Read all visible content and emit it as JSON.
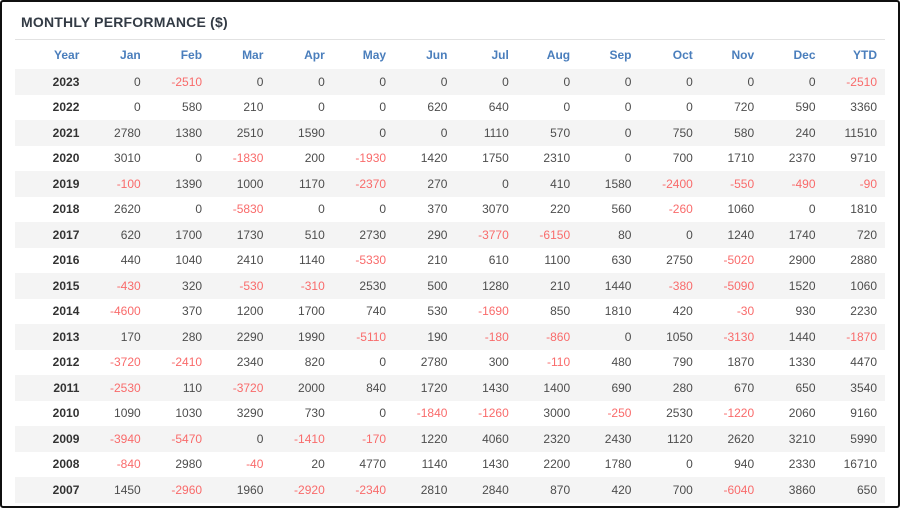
{
  "title": "MONTHLY PERFORMANCE ($)",
  "colors": {
    "header_text": "#4a7ebc",
    "negative_value": "#f96b6b",
    "value_text": "#4d4d4d",
    "year_text": "#333333",
    "stripe_row": "#f4f4f4",
    "title_text": "#333b45",
    "frame_border": "#101010"
  },
  "chart_data": {
    "type": "table",
    "title": "MONTHLY PERFORMANCE ($)",
    "columns": [
      "Year",
      "Jan",
      "Feb",
      "Mar",
      "Apr",
      "May",
      "Jun",
      "Jul",
      "Aug",
      "Sep",
      "Oct",
      "Nov",
      "Dec",
      "YTD"
    ],
    "rows": [
      [
        "2023",
        0,
        -2510,
        0,
        0,
        0,
        0,
        0,
        0,
        0,
        0,
        0,
        0,
        -2510
      ],
      [
        "2022",
        0,
        580,
        210,
        0,
        0,
        620,
        640,
        0,
        0,
        0,
        720,
        590,
        3360
      ],
      [
        "2021",
        2780,
        1380,
        2510,
        1590,
        0,
        0,
        1110,
        570,
        0,
        750,
        580,
        240,
        11510
      ],
      [
        "2020",
        3010,
        0,
        -1830,
        200,
        -1930,
        1420,
        1750,
        2310,
        0,
        700,
        1710,
        2370,
        9710
      ],
      [
        "2019",
        -100,
        1390,
        1000,
        1170,
        -2370,
        270,
        0,
        410,
        1580,
        -2400,
        -550,
        -490,
        -90
      ],
      [
        "2018",
        2620,
        0,
        -5830,
        0,
        0,
        370,
        3070,
        220,
        560,
        -260,
        1060,
        0,
        1810
      ],
      [
        "2017",
        620,
        1700,
        1730,
        510,
        2730,
        290,
        -3770,
        -6150,
        80,
        0,
        1240,
        1740,
        720
      ],
      [
        "2016",
        440,
        1040,
        2410,
        1140,
        -5330,
        210,
        610,
        1100,
        630,
        2750,
        -5020,
        2900,
        2880
      ],
      [
        "2015",
        -430,
        320,
        -530,
        -310,
        2530,
        500,
        1280,
        210,
        1440,
        -380,
        -5090,
        1520,
        1060
      ],
      [
        "2014",
        -4600,
        370,
        1200,
        1700,
        740,
        530,
        -1690,
        850,
        1810,
        420,
        -30,
        930,
        2230
      ],
      [
        "2013",
        170,
        280,
        2290,
        1990,
        -5110,
        190,
        -180,
        -860,
        0,
        1050,
        -3130,
        1440,
        -1870
      ],
      [
        "2012",
        -3720,
        -2410,
        2340,
        820,
        0,
        2780,
        300,
        -110,
        480,
        790,
        1870,
        1330,
        4470
      ],
      [
        "2011",
        -2530,
        110,
        -3720,
        2000,
        840,
        1720,
        1430,
        1400,
        690,
        280,
        670,
        650,
        3540
      ],
      [
        "2010",
        1090,
        1030,
        3290,
        730,
        0,
        -1840,
        -1260,
        3000,
        -250,
        2530,
        -1220,
        2060,
        9160
      ],
      [
        "2009",
        -3940,
        -5470,
        0,
        -1410,
        -170,
        1220,
        4060,
        2320,
        2430,
        1120,
        2620,
        3210,
        5990
      ],
      [
        "2008",
        -840,
        2980,
        -40,
        20,
        4770,
        1140,
        1430,
        2200,
        1780,
        0,
        940,
        2330,
        16710
      ],
      [
        "2007",
        1450,
        -2960,
        1960,
        -2920,
        -2340,
        2810,
        2840,
        870,
        420,
        700,
        -6040,
        3860,
        650
      ]
    ]
  }
}
